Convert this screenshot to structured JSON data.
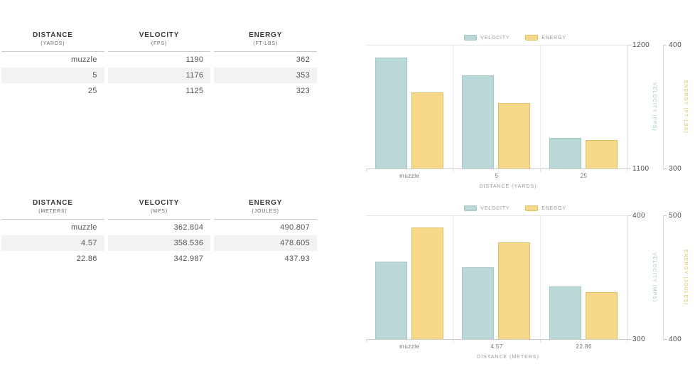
{
  "colors": {
    "velocity_fill": "#b9d8d7",
    "velocity_border": "#a3c6c5",
    "energy_fill": "#f5d88a",
    "energy_border": "#e2bd62",
    "velocity_axis_title": "#9ecbca",
    "energy_axis_title": "#e9c05c",
    "row_stripe": "#f2f2f2"
  },
  "tables": [
    {
      "columns": [
        {
          "title": "DISTANCE",
          "unit": "(YARDS)"
        },
        {
          "title": "VELOCITY",
          "unit": "(FPS)"
        },
        {
          "title": "ENERGY",
          "unit": "(FT-LBS)"
        }
      ],
      "rows": [
        [
          "muzzle",
          "1190",
          "362"
        ],
        [
          "5",
          "1176",
          "353"
        ],
        [
          "25",
          "1125",
          "323"
        ]
      ]
    },
    {
      "columns": [
        {
          "title": "DISTANCE",
          "unit": "(METERS)"
        },
        {
          "title": "VELOCITY",
          "unit": "(MPS)"
        },
        {
          "title": "ENERGY",
          "unit": "(JOULES)"
        }
      ],
      "rows": [
        [
          "muzzle",
          "362.804",
          "490.807"
        ],
        [
          "4.57",
          "358.536",
          "478.605"
        ],
        [
          "22.86",
          "342.987",
          "437.93"
        ]
      ]
    }
  ],
  "chart_data": [
    {
      "type": "bar",
      "title": "",
      "categories": [
        "muzzle",
        "5",
        "25"
      ],
      "series": [
        {
          "name": "VELOCITY",
          "axis": "left",
          "values": [
            1190,
            1176,
            1125
          ]
        },
        {
          "name": "ENERGY",
          "axis": "right",
          "values": [
            362,
            353,
            323
          ]
        }
      ],
      "xlabel": "DISTANCE (YARDS)",
      "y_left": {
        "label": "VELOCITY (FPS)",
        "min": 1100,
        "max": 1200,
        "ticks": [
          "1200",
          "1100"
        ]
      },
      "y_right": {
        "label": "ENERGY (FT-LBS)",
        "min": 300,
        "max": 400,
        "ticks": [
          "400",
          "300"
        ]
      },
      "legend": [
        "VELOCITY",
        "ENERGY"
      ],
      "legend_position": "top",
      "grid": "category-separators"
    },
    {
      "type": "bar",
      "title": "",
      "categories": [
        "muzzle",
        "4.57",
        "22.86"
      ],
      "series": [
        {
          "name": "VELOCITY",
          "axis": "left",
          "values": [
            362.804,
            358.536,
            342.987
          ]
        },
        {
          "name": "ENERGY",
          "axis": "right",
          "values": [
            490.807,
            478.605,
            437.93
          ]
        }
      ],
      "xlabel": "DISTANCE (METERS)",
      "y_left": {
        "label": "VELOCITY (MPS)",
        "min": 300,
        "max": 400,
        "ticks": [
          "400",
          "300"
        ]
      },
      "y_right": {
        "label": "ENERGY (JOULES)",
        "min": 400,
        "max": 500,
        "ticks": [
          "500",
          "400"
        ]
      },
      "legend": [
        "VELOCITY",
        "ENERGY"
      ],
      "legend_position": "top",
      "grid": "category-separators"
    }
  ]
}
